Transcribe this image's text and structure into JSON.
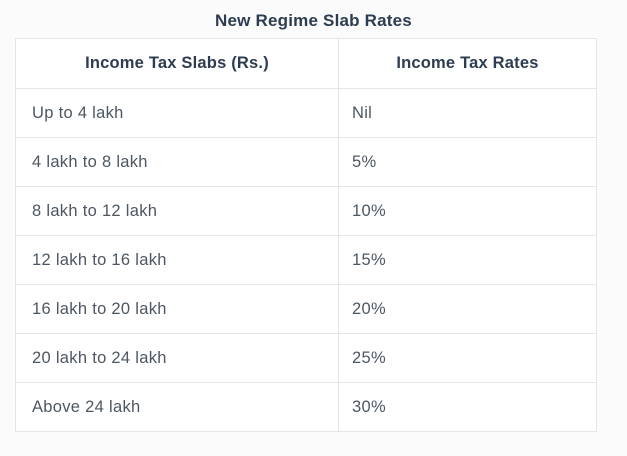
{
  "title": "New Regime Slab Rates",
  "table": {
    "headers": [
      "Income Tax Slabs (Rs.)",
      "Income Tax Rates"
    ],
    "rows": [
      {
        "slab": "Up to 4 lakh",
        "rate": "Nil"
      },
      {
        "slab": "4 lakh to 8 lakh",
        "rate": "5%"
      },
      {
        "slab": "8 lakh to 12 lakh",
        "rate": "10%"
      },
      {
        "slab": "12 lakh to 16 lakh",
        "rate": "15%"
      },
      {
        "slab": "16 lakh to 20 lakh",
        "rate": "20%"
      },
      {
        "slab": "20 lakh to 24 lakh",
        "rate": "25%"
      },
      {
        "slab": "Above 24 lakh",
        "rate": "30%"
      }
    ]
  },
  "colors": {
    "heading_text": "#2d3c50",
    "body_text": "#4d5761",
    "border": "#e4e5e7",
    "cell_background": "#ffffff",
    "page_background": "#fbfbfb"
  },
  "chart_data": {
    "type": "table",
    "title": "New Regime Slab Rates",
    "columns": [
      "Income Tax Slabs (Rs.)",
      "Income Tax Rates"
    ],
    "rows": [
      [
        "Up to 4 lakh",
        "Nil"
      ],
      [
        "4 lakh to 8 lakh",
        "5%"
      ],
      [
        "8 lakh to 12 lakh",
        "10%"
      ],
      [
        "12 lakh to 16 lakh",
        "15%"
      ],
      [
        "16 lakh to 20 lakh",
        "20%"
      ],
      [
        "20 lakh to 24 lakh",
        "25%"
      ],
      [
        "Above 24 lakh",
        "30%"
      ]
    ]
  }
}
